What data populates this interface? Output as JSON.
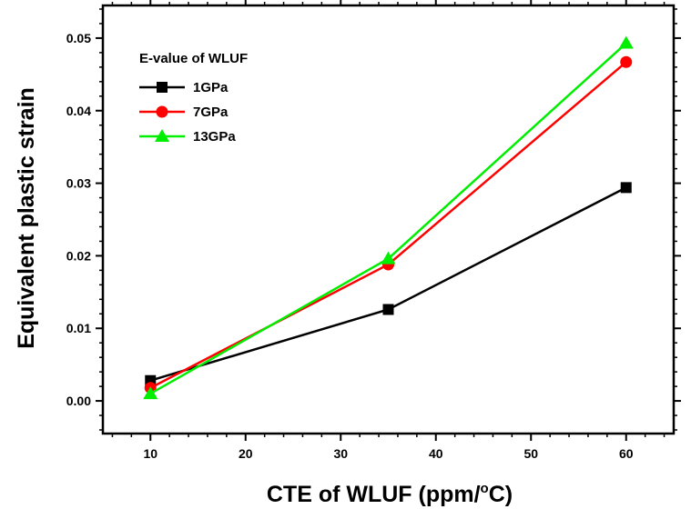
{
  "chart_data": {
    "type": "line",
    "xlabel": "CTE of WLUF (ppm/",
    "xlabel_sup": "o",
    "xlabel_end": "C)",
    "ylabel": "Equivalent plastic strain",
    "xlim": [
      5,
      65
    ],
    "ylim": [
      -0.0045,
      0.0545
    ],
    "x_ticks": [
      10,
      20,
      30,
      40,
      50,
      60
    ],
    "x_tick_labels": [
      "10",
      "20",
      "30",
      "40",
      "50",
      "60"
    ],
    "y_ticks": [
      0.0,
      0.01,
      0.02,
      0.03,
      0.04,
      0.05
    ],
    "y_tick_labels": [
      "0.00",
      "0.01",
      "0.02",
      "0.03",
      "0.04",
      "0.05"
    ],
    "grid": false,
    "legend": {
      "title": "E-value of WLUF",
      "placement": "top-left"
    },
    "series": [
      {
        "name": "1GPa",
        "color": "#000000",
        "marker": "square",
        "x": [
          10,
          35,
          60
        ],
        "y": [
          0.0028,
          0.0126,
          0.0294
        ]
      },
      {
        "name": "7GPa",
        "color": "#ff0000",
        "marker": "circle",
        "x": [
          10,
          35,
          60
        ],
        "y": [
          0.0018,
          0.0188,
          0.0467
        ]
      },
      {
        "name": "13GPa",
        "color": "#00ee00",
        "marker": "triangle",
        "x": [
          10,
          35,
          60
        ],
        "y": [
          0.001,
          0.0196,
          0.0493
        ]
      }
    ]
  }
}
